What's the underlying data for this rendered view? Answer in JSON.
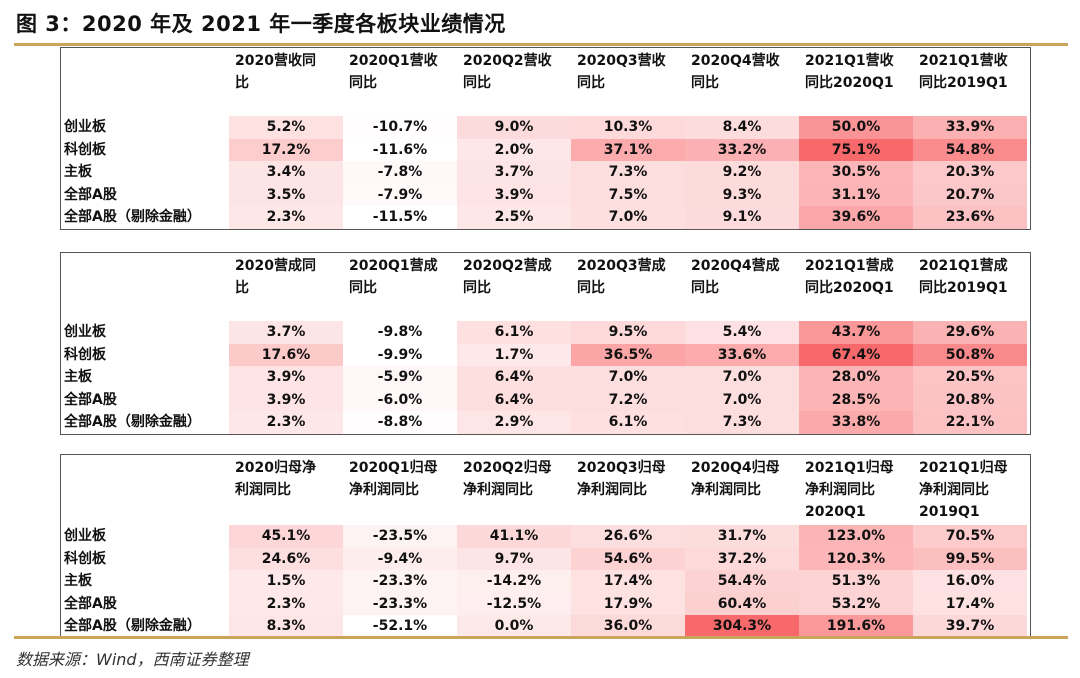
{
  "title": "图 3：2020 年及 2021 年一季度各板块业绩情况",
  "source": "数据来源：Wind，西南证券整理",
  "colors": {
    "rule": "#c9a45c",
    "heat_high": "#f8696b",
    "heat_low": "#ffffff"
  },
  "row_labels": [
    "创业板",
    "科创板",
    "主板",
    "全部A股",
    "全部A股（剔除金融）"
  ],
  "tables": [
    {
      "headers": [
        [
          "2020营收同",
          "比"
        ],
        [
          "2020Q1营收",
          "同比"
        ],
        [
          "2020Q2营收",
          "同比"
        ],
        [
          "2020Q3营收",
          "同比"
        ],
        [
          "2020Q4营收",
          "同比"
        ],
        [
          "2021Q1营收",
          "同比2020Q1"
        ],
        [
          "2021Q1营收",
          "同比2019Q1"
        ]
      ],
      "rows": [
        [
          "5.2%",
          "-10.7%",
          "9.0%",
          "10.3%",
          "8.4%",
          "50.0%",
          "33.9%"
        ],
        [
          "17.2%",
          "-11.6%",
          "2.0%",
          "37.1%",
          "33.2%",
          "75.1%",
          "54.8%"
        ],
        [
          "3.4%",
          "-7.8%",
          "3.7%",
          "7.3%",
          "9.2%",
          "30.5%",
          "20.3%"
        ],
        [
          "3.5%",
          "-7.9%",
          "3.9%",
          "7.5%",
          "9.3%",
          "31.1%",
          "20.7%"
        ],
        [
          "2.3%",
          "-11.5%",
          "2.5%",
          "7.0%",
          "9.1%",
          "39.6%",
          "23.6%"
        ]
      ]
    },
    {
      "headers": [
        [
          "2020营成同",
          "比"
        ],
        [
          "2020Q1营成",
          "同比"
        ],
        [
          "2020Q2营成",
          "同比"
        ],
        [
          "2020Q3营成",
          "同比"
        ],
        [
          "2020Q4营成",
          "同比"
        ],
        [
          "2021Q1营成",
          "同比2020Q1"
        ],
        [
          "2021Q1营成",
          "同比2019Q1"
        ]
      ],
      "rows": [
        [
          "3.7%",
          "-9.8%",
          "6.1%",
          "9.5%",
          "5.4%",
          "43.7%",
          "29.6%"
        ],
        [
          "17.6%",
          "-9.9%",
          "1.7%",
          "36.5%",
          "33.6%",
          "67.4%",
          "50.8%"
        ],
        [
          "3.9%",
          "-5.9%",
          "6.4%",
          "7.0%",
          "7.0%",
          "28.0%",
          "20.5%"
        ],
        [
          "3.9%",
          "-6.0%",
          "6.4%",
          "7.2%",
          "7.0%",
          "28.5%",
          "20.8%"
        ],
        [
          "2.3%",
          "-8.8%",
          "2.9%",
          "6.1%",
          "7.3%",
          "33.8%",
          "22.1%"
        ]
      ]
    },
    {
      "headers": [
        [
          "2020归母净",
          "利润同比"
        ],
        [
          "2020Q1归母",
          "净利润同比"
        ],
        [
          "2020Q2归母",
          "净利润同比"
        ],
        [
          "2020Q3归母",
          "净利润同比"
        ],
        [
          "2020Q4归母",
          "净利润同比"
        ],
        [
          "2021Q1归母",
          "净利润同比",
          "2020Q1"
        ],
        [
          "2021Q1归母",
          "净利润同比",
          "2019Q1"
        ]
      ],
      "rows": [
        [
          "45.1%",
          "-23.5%",
          "41.1%",
          "26.6%",
          "31.7%",
          "123.0%",
          "70.5%"
        ],
        [
          "24.6%",
          "-9.4%",
          "9.7%",
          "54.6%",
          "37.2%",
          "120.3%",
          "99.5%"
        ],
        [
          "1.5%",
          "-23.3%",
          "-14.2%",
          "17.4%",
          "54.4%",
          "51.3%",
          "16.0%"
        ],
        [
          "2.3%",
          "-23.3%",
          "-12.5%",
          "17.9%",
          "60.4%",
          "53.2%",
          "17.4%"
        ],
        [
          "8.3%",
          "-52.1%",
          "0.0%",
          "36.0%",
          "304.3%",
          "191.6%",
          "39.7%"
        ]
      ]
    }
  ]
}
